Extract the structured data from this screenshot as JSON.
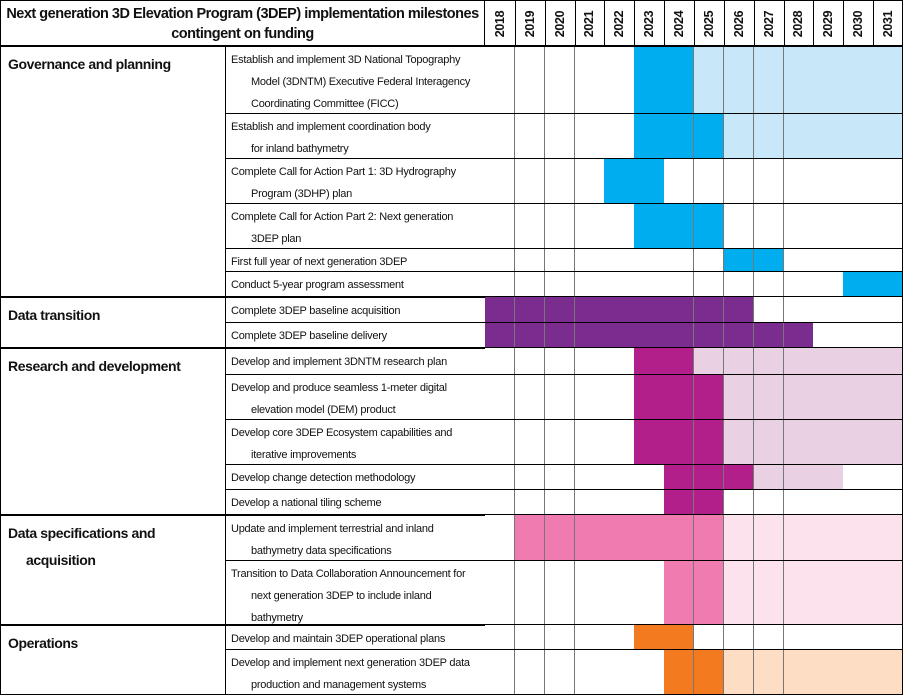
{
  "title": "Next generation 3D Elevation Program (3DEP) implementation milestones contingent on funding",
  "years": [
    "2018",
    "2019",
    "2020",
    "2021",
    "2022",
    "2023",
    "2024",
    "2025",
    "2026",
    "2027",
    "2028",
    "2029",
    "2030",
    "2031"
  ],
  "legend_codes": {
    "0": "not scheduled",
    "D": "milestone period",
    "L": "continuing period"
  },
  "groups": [
    {
      "name": "Governance and planning",
      "color": "#00ADEE",
      "light": "#C8E8FA",
      "tasks": [
        {
          "lines": [
            "Establish and implement 3D National Topography",
            "Model (3DNTM) Executive Federal Interagency",
            "Coordinating Committee (FICC)"
          ],
          "cells": "00000DDLLLLLLL"
        },
        {
          "lines": [
            "Establish and implement coordination body",
            "for inland bathymetry"
          ],
          "cells": "00000DDDLLLLLL"
        },
        {
          "lines": [
            "Complete Call for Action Part 1: 3D Hydrography",
            "Program (3DHP) plan"
          ],
          "cells": "0000DD00000000"
        },
        {
          "lines": [
            "Complete Call for Action Part 2: Next generation",
            "3DEP plan"
          ],
          "cells": "00000DDD000000"
        },
        {
          "lines": [
            "First full year of next generation 3DEP"
          ],
          "cells": "00000000DD0000"
        },
        {
          "lines": [
            "Conduct 5-year program assessment"
          ],
          "cells": "000000000000DD"
        }
      ]
    },
    {
      "name": "Data transition",
      "color": "#7B2D8F",
      "light": "#E5D3EA",
      "tasks": [
        {
          "lines": [
            "Complete 3DEP baseline acquisition"
          ],
          "cells": "DDDDDDDDD00000"
        },
        {
          "lines": [
            "Complete 3DEP baseline delivery"
          ],
          "cells": "DDDDDDDDDDD000"
        }
      ]
    },
    {
      "name": "Research and development",
      "color": "#B21E8A",
      "light": "#E9D0E3",
      "tasks": [
        {
          "lines": [
            "Develop and implement 3DNTM research plan"
          ],
          "cells": "00000DDLLLLLLL"
        },
        {
          "lines": [
            "Develop and produce seamless 1-meter digital",
            "elevation model (DEM) product"
          ],
          "cells": "00000DDDLLLLLL"
        },
        {
          "lines": [
            "Develop core 3DEP Ecosystem capabilities and",
            "iterative improvements"
          ],
          "cells": "00000DDDLLLLLL"
        },
        {
          "lines": [
            "Develop change detection methodology"
          ],
          "cells": "000000DDDLLL00"
        },
        {
          "lines": [
            "Develop a national tiling scheme"
          ],
          "cells": "000000DD000000"
        }
      ]
    },
    {
      "name": "Data specifications and acquisition",
      "name_lines": [
        "Data specifications and",
        "acquisition"
      ],
      "color": "#F07BB0",
      "light": "#FCE2EC",
      "tasks": [
        {
          "lines": [
            "Update and implement terrestrial and inland",
            "bathymetry data specifications"
          ],
          "cells": "0DDDDDDDLLLLLL"
        },
        {
          "lines": [
            "Transition to Data Collaboration Announcement for",
            "next generation 3DEP to include inland",
            "bathymetry"
          ],
          "cells": "000000DDLLLLLL"
        }
      ]
    },
    {
      "name": "Operations",
      "color": "#F47A20",
      "light": "#FDDDC3",
      "tasks": [
        {
          "lines": [
            "Develop and maintain 3DEP operational plans"
          ],
          "cells": "00000DD0000000"
        },
        {
          "lines": [
            "Develop and implement next generation 3DEP data",
            "production and management systems"
          ],
          "cells": "000000DDLLLLLL"
        }
      ]
    }
  ]
}
